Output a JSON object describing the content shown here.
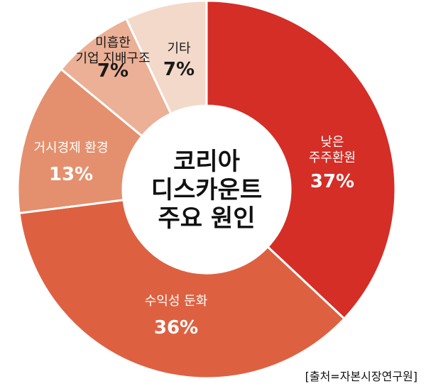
{
  "chart_data": {
    "type": "pie",
    "variant": "donut",
    "title": "코리아 디스카운트 주요 원인",
    "title_lines": [
      "코리아",
      "디스카운트",
      "주요 원인"
    ],
    "slices": [
      {
        "label_lines": [
          "낮은",
          "주주환원"
        ],
        "value": 37,
        "value_label": "37%",
        "color": "#d42e27",
        "label_color": "#ffffff"
      },
      {
        "label_lines": [
          "수익성 둔화"
        ],
        "value": 36,
        "value_label": "36%",
        "color": "#dd6141",
        "label_color": "#ffffff"
      },
      {
        "label_lines": [
          "거시경제 환경"
        ],
        "value": 13,
        "value_label": "13%",
        "color": "#e4906e",
        "label_color": "#ffffff"
      },
      {
        "label_lines": [
          "미흡한",
          "기업 지배구조"
        ],
        "value": 7,
        "value_label": "7%",
        "color": "#ebb096",
        "label_color": "#1a1a1a"
      },
      {
        "label_lines": [
          "기타"
        ],
        "value": 7,
        "value_label": "7%",
        "color": "#f3d9c9",
        "label_color": "#1a1a1a"
      }
    ],
    "legend": "none",
    "source": "[출처=자본시장연구원]"
  }
}
